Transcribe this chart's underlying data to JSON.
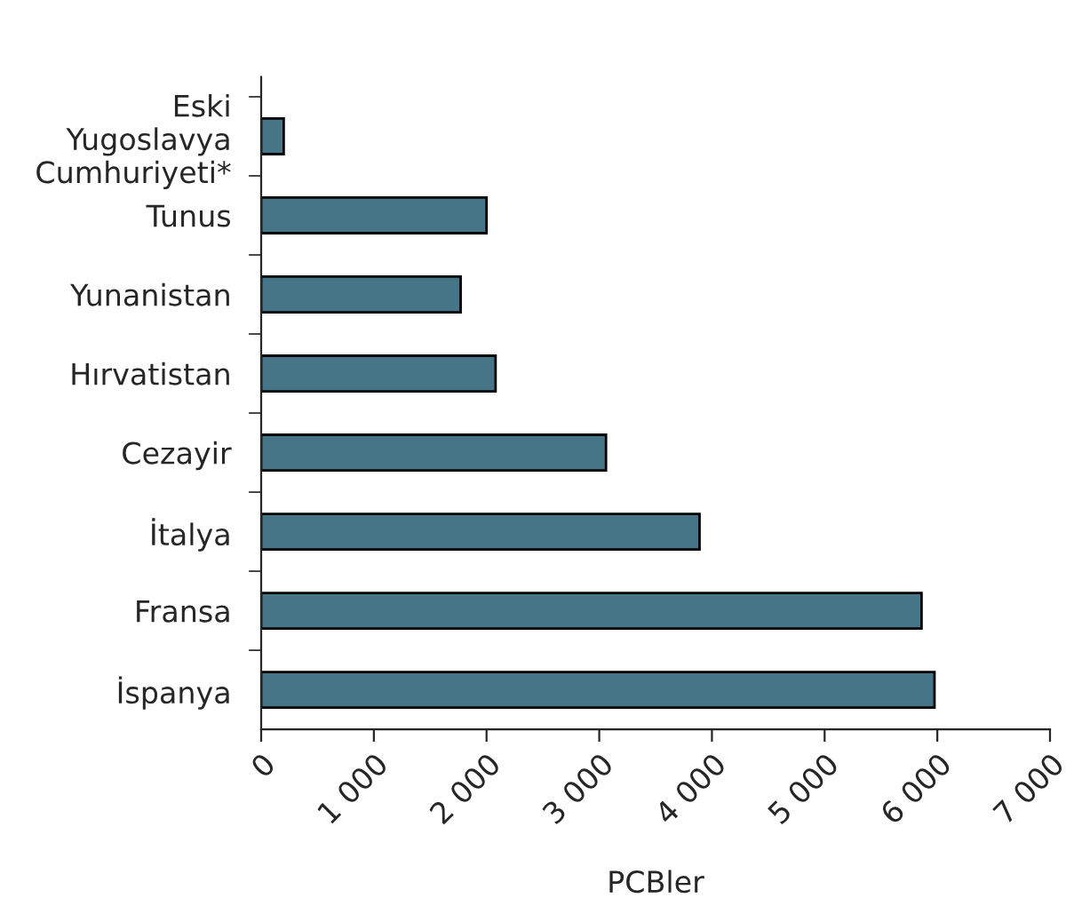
{
  "chart_data": {
    "type": "bar",
    "orientation": "horizontal",
    "xlabel": "PCBler",
    "categories": [
      "Eski\nYugoslavya\nCumhuriyeti*",
      "Tunus",
      "Yunanistan",
      "Hırvatistan",
      "Cezayir",
      "İtalya",
      "Fransa",
      "İspanya"
    ],
    "values": [
      200,
      2000,
      1770,
      2080,
      3060,
      3890,
      5860,
      5975
    ],
    "color": "#467587",
    "xlim": [
      0,
      7000
    ],
    "xticks": [
      0,
      {
        "value": 1000,
        "label": "1 000"
      },
      {
        "value": 2000,
        "label": "2 000"
      },
      {
        "value": 3000,
        "label": "3 000"
      },
      {
        "value": 4000,
        "label": "4 000"
      },
      {
        "value": 5000,
        "label": "5 000"
      },
      {
        "value": 6000,
        "label": "6 000"
      },
      {
        "value": 7000,
        "label": "7 000"
      }
    ],
    "grid": false
  }
}
